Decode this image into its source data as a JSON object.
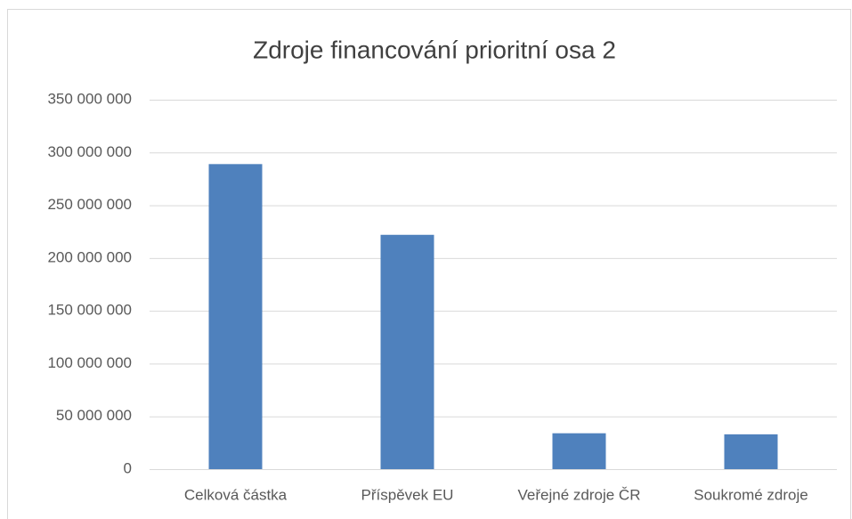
{
  "chart_data": {
    "type": "bar",
    "title": "Zdroje financování prioritní osa 2",
    "categories": [
      "Celková částka",
      "Příspěvek EU",
      "Veřejné zdroje ČR",
      "Soukromé zdroje"
    ],
    "values": [
      289000000,
      222000000,
      34000000,
      33000000
    ],
    "color": "#4f81bd",
    "ylim": [
      0,
      350000000
    ],
    "yticks": [
      0,
      {
        "value": 50000000,
        "label": "50 000 000"
      },
      {
        "value": 100000000,
        "label": "100 000 000"
      },
      {
        "value": 150000000,
        "label": "150 000 000"
      },
      {
        "value": 200000000,
        "label": "200 000 000"
      },
      {
        "value": 250000000,
        "label": "250 000 000"
      },
      {
        "value": 300000000,
        "label": "300 000 000"
      },
      {
        "value": 350000000,
        "label": "350 000 000"
      }
    ],
    "grid": true
  }
}
